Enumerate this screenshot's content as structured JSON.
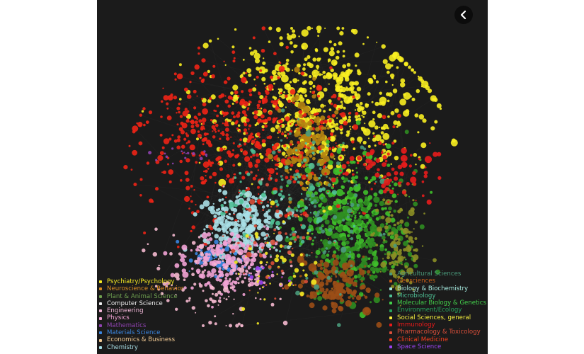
{
  "back_button": {
    "icon": "chevron-left-icon",
    "color": "#ffffff",
    "background": "#0c0c0c"
  },
  "legend_left": [
    {
      "label": "Psychiatry/Psychology",
      "color": "#f5ea23"
    },
    {
      "label": "Neuroscience & Behavior",
      "color": "#d98c22"
    },
    {
      "label": "Plant & Animal Science",
      "color": "#6fa04f"
    },
    {
      "label": "Computer Science",
      "color": "#f0f0f0"
    },
    {
      "label": "Engineering",
      "color": "#f2b8d8"
    },
    {
      "label": "Physics",
      "color": "#f2a3d5"
    },
    {
      "label": "Mathematics",
      "color": "#8e43b0"
    },
    {
      "label": "Materials Science",
      "color": "#3b86e0"
    },
    {
      "label": "Economics & Business",
      "color": "#f0c892"
    },
    {
      "label": "Chemistry",
      "color": "#a9dfe6"
    }
  ],
  "legend_right": [
    {
      "label": "Agricultural Sciences",
      "color": "#4a9b7c"
    },
    {
      "label": "Geosciences",
      "color": "#c75e18"
    },
    {
      "label": "Biology & Biochemistry",
      "color": "#a7ebe0"
    },
    {
      "label": "Microbiology",
      "color": "#4fc196"
    },
    {
      "label": "Molecular Biology & Genetics",
      "color": "#43d14b"
    },
    {
      "label": "Environment/Ecology",
      "color": "#27a25d"
    },
    {
      "label": "Social Sciences, general",
      "color": "#f8f13e"
    },
    {
      "label": "Immunology",
      "color": "#ec1a1a"
    },
    {
      "label": "Pharmacology & Toxicology",
      "color": "#d94f3a"
    },
    {
      "label": "Clinical Medicine",
      "color": "#f43d1e"
    },
    {
      "label": "Space Science",
      "color": "#9b43f0"
    }
  ],
  "clusters": [
    {
      "field": "Social Sciences, general",
      "color": "#f8ee20",
      "center": [
        0.58,
        0.29
      ],
      "spread": [
        0.14,
        0.1
      ],
      "count": 620,
      "rmax": 4.5
    },
    {
      "field": "Clinical Medicine",
      "color": "#ee2416",
      "center": [
        0.38,
        0.39
      ],
      "spread": [
        0.13,
        0.11
      ],
      "count": 560,
      "rmax": 3.5
    },
    {
      "field": "Neuroscience & Behavior",
      "color": "#b58311",
      "center": [
        0.54,
        0.42
      ],
      "spread": [
        0.035,
        0.07
      ],
      "count": 150,
      "rmax": 4.5
    },
    {
      "field": "Chemistry",
      "color": "#a9dfe6",
      "center": [
        0.37,
        0.63
      ],
      "spread": [
        0.055,
        0.045
      ],
      "count": 260,
      "rmax": 4.5
    },
    {
      "field": "Materials Science",
      "color": "#3b86e0",
      "center": [
        0.31,
        0.73
      ],
      "spread": [
        0.035,
        0.025
      ],
      "count": 70,
      "rmax": 4
    },
    {
      "field": "Physics",
      "color": "#f2a3d5",
      "center": [
        0.33,
        0.74
      ],
      "spread": [
        0.06,
        0.045
      ],
      "count": 220,
      "rmax": 4
    },
    {
      "field": "Molecular Biology & Genetics",
      "color": "#3fbf2a",
      "center": [
        0.65,
        0.63
      ],
      "spread": [
        0.06,
        0.09
      ],
      "count": 330,
      "rmax": 4.5
    },
    {
      "field": "Environment/Ecology",
      "color": "#2f8d21",
      "center": [
        0.67,
        0.68
      ],
      "spread": [
        0.07,
        0.08
      ],
      "count": 260,
      "rmax": 5
    },
    {
      "field": "Geosciences",
      "color": "#9b4e16",
      "center": [
        0.61,
        0.8
      ],
      "spread": [
        0.05,
        0.04
      ],
      "count": 160,
      "rmax": 5
    },
    {
      "field": "Plant & Animal Science",
      "color": "#8c8f25",
      "center": [
        0.77,
        0.7
      ],
      "spread": [
        0.03,
        0.08
      ],
      "count": 110,
      "rmax": 4
    },
    {
      "field": "Agricultural Sciences",
      "color": "#4a9b7c",
      "center": [
        0.56,
        0.6
      ],
      "spread": [
        0.08,
        0.12
      ],
      "count": 120,
      "rmax": 3.5
    },
    {
      "field": "Microbiology",
      "color": "#4fc196",
      "center": [
        0.46,
        0.55
      ],
      "spread": [
        0.08,
        0.07
      ],
      "count": 90,
      "rmax": 3.5
    },
    {
      "field": "Immunology",
      "color": "#e81c1c",
      "center": [
        0.75,
        0.48
      ],
      "spread": [
        0.06,
        0.04
      ],
      "count": 80,
      "rmax": 4.5
    },
    {
      "field": "Engineering",
      "color": "#f5b9cf",
      "center": [
        0.3,
        0.8
      ],
      "spread": [
        0.09,
        0.07
      ],
      "count": 110,
      "rmax": 3
    },
    {
      "field": "Mathematics",
      "color": "#8e43b0",
      "center": [
        0.22,
        0.44
      ],
      "spread": [
        0.04,
        0.01
      ],
      "count": 16,
      "rmax": 2.5
    },
    {
      "field": "Psychiatry/Psychology",
      "color": "#f5ea23",
      "center": [
        0.47,
        0.72
      ],
      "spread": [
        0.06,
        0.07
      ],
      "count": 50,
      "rmax": 3
    },
    {
      "field": "Pharmacology & Toxicology",
      "color": "#d94f3a",
      "center": [
        0.44,
        0.68
      ],
      "spread": [
        0.06,
        0.08
      ],
      "count": 60,
      "rmax": 3
    },
    {
      "field": "Space Science",
      "color": "#9b43f0",
      "center": [
        0.45,
        0.79
      ],
      "spread": [
        0.03,
        0.02
      ],
      "count": 10,
      "rmax": 2.5
    }
  ]
}
